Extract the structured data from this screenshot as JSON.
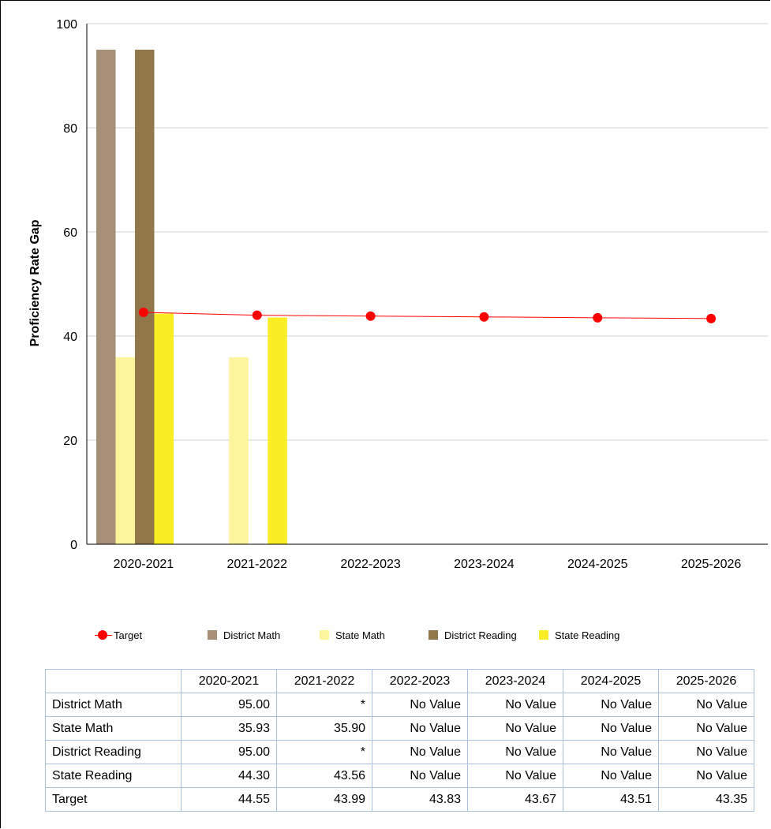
{
  "chart_data": {
    "type": "bar",
    "ylabel": "Proficiency Rate Gap",
    "xlabel": "",
    "ylim": [
      0,
      100
    ],
    "yticks": [
      "0",
      "20",
      "40",
      "60",
      "80",
      "100"
    ],
    "categories": [
      "2020-2021",
      "2021-2022",
      "2022-2023",
      "2023-2024",
      "2024-2025",
      "2025-2026"
    ],
    "grid": true,
    "legend_position": "bottom",
    "bar_series": [
      {
        "name": "District Math",
        "color": "#a68f76",
        "values": [
          95.0,
          null,
          null,
          null,
          null,
          null
        ]
      },
      {
        "name": "State Math",
        "color": "#fdf59b",
        "values": [
          35.93,
          35.9,
          null,
          null,
          null,
          null
        ]
      },
      {
        "name": "District Reading",
        "color": "#92774a",
        "values": [
          95.0,
          null,
          null,
          null,
          null,
          null
        ]
      },
      {
        "name": "State Reading",
        "color": "#f8ee23",
        "values": [
          44.3,
          43.56,
          null,
          null,
          null,
          null
        ]
      }
    ],
    "line_series": [
      {
        "name": "Target",
        "color": "#ff0000",
        "values": [
          44.55,
          43.99,
          43.83,
          43.67,
          43.51,
          43.35
        ]
      }
    ]
  },
  "legend": [
    {
      "label": "Target",
      "kind": "line-marker",
      "color": "#ff0000"
    },
    {
      "label": "District Math",
      "kind": "swatch",
      "color": "#a68f76"
    },
    {
      "label": "State Math",
      "kind": "swatch",
      "color": "#fdf59b"
    },
    {
      "label": "District Reading",
      "kind": "swatch",
      "color": "#92774a"
    },
    {
      "label": "State Reading",
      "kind": "swatch",
      "color": "#f8ee23"
    }
  ],
  "table": {
    "headers": [
      "",
      "2020-2021",
      "2021-2022",
      "2022-2023",
      "2023-2024",
      "2024-2025",
      "2025-2026"
    ],
    "rows": [
      {
        "label": "District Math",
        "cells": [
          "95.00",
          "*",
          "No Value",
          "No Value",
          "No Value",
          "No Value"
        ]
      },
      {
        "label": "State Math",
        "cells": [
          "35.93",
          "35.90",
          "No Value",
          "No Value",
          "No Value",
          "No Value"
        ]
      },
      {
        "label": "District Reading",
        "cells": [
          "95.00",
          "*",
          "No Value",
          "No Value",
          "No Value",
          "No Value"
        ]
      },
      {
        "label": "State Reading",
        "cells": [
          "44.30",
          "43.56",
          "No Value",
          "No Value",
          "No Value",
          "No Value"
        ]
      },
      {
        "label": "Target",
        "cells": [
          "44.55",
          "43.99",
          "43.83",
          "43.67",
          "43.51",
          "43.35"
        ]
      }
    ]
  }
}
